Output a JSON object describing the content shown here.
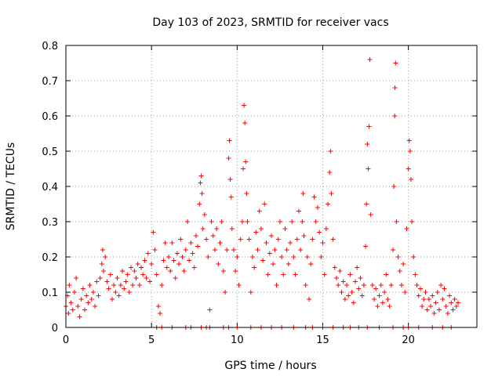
{
  "chart_data": {
    "type": "scatter",
    "title": "Day 103 of 2023, SRMTID for receiver vacs",
    "xlabel": "GPS time / hours",
    "ylabel": "SRMTID / TECUs",
    "xlim": [
      0,
      24
    ],
    "ylim": [
      0,
      0.8
    ],
    "xticks": [
      0,
      5,
      10,
      15,
      20
    ],
    "xtick_labels": [
      "0",
      "5",
      "10",
      "15",
      "20"
    ],
    "yticks": [
      0,
      0.1,
      0.2,
      0.3,
      0.4,
      0.5,
      0.6,
      0.7,
      0.8
    ],
    "ytick_labels": [
      "0",
      "0.1",
      "0.2",
      "0.3",
      "0.4",
      "0.5",
      "0.6",
      "0.7",
      "0.8"
    ],
    "grid": true,
    "marker": "+",
    "color": "#ff0000",
    "series": [
      {
        "name": "SRMTID",
        "points": [
          [
            0.0,
            0.06
          ],
          [
            0.1,
            0.09
          ],
          [
            0.15,
            0.04
          ],
          [
            0.2,
            0.12
          ],
          [
            0.3,
            0.07
          ],
          [
            0.4,
            0.05
          ],
          [
            0.5,
            0.1
          ],
          [
            0.6,
            0.14
          ],
          [
            0.7,
            0.06
          ],
          [
            0.8,
            0.03
          ],
          [
            0.9,
            0.08
          ],
          [
            1.0,
            0.11
          ],
          [
            1.1,
            0.05
          ],
          [
            1.2,
            0.09
          ],
          [
            1.3,
            0.07
          ],
          [
            1.4,
            0.12
          ],
          [
            1.5,
            0.08
          ],
          [
            1.6,
            0.1
          ],
          [
            1.7,
            0.06
          ],
          [
            1.8,
            0.13
          ],
          [
            1.9,
            0.09
          ],
          [
            2.0,
            0.14
          ],
          [
            2.1,
            0.18
          ],
          [
            2.15,
            0.22
          ],
          [
            2.2,
            0.16
          ],
          [
            2.3,
            0.2
          ],
          [
            2.4,
            0.13
          ],
          [
            2.5,
            0.11
          ],
          [
            2.6,
            0.15
          ],
          [
            2.7,
            0.08
          ],
          [
            2.8,
            0.12
          ],
          [
            2.9,
            0.1
          ],
          [
            3.0,
            0.14
          ],
          [
            3.1,
            0.09
          ],
          [
            3.2,
            0.12
          ],
          [
            3.3,
            0.16
          ],
          [
            3.4,
            0.11
          ],
          [
            3.5,
            0.13
          ],
          [
            3.6,
            0.15
          ],
          [
            3.7,
            0.1
          ],
          [
            3.8,
            0.17
          ],
          [
            3.9,
            0.12
          ],
          [
            4.0,
            0.16
          ],
          [
            4.1,
            0.14
          ],
          [
            4.2,
            0.18
          ],
          [
            4.3,
            0.12
          ],
          [
            4.4,
            0.17
          ],
          [
            4.5,
            0.15
          ],
          [
            4.6,
            0.19
          ],
          [
            4.7,
            0.14
          ],
          [
            4.8,
            0.21
          ],
          [
            4.9,
            0.13
          ],
          [
            5.0,
            0.18
          ],
          [
            5.1,
            0.27
          ],
          [
            5.2,
            0.22
          ],
          [
            5.3,
            0.15
          ],
          [
            5.4,
            0.06
          ],
          [
            5.5,
            0.04
          ],
          [
            5.6,
            0.12
          ],
          [
            5.7,
            0.19
          ],
          [
            5.8,
            0.24
          ],
          [
            5.9,
            0.17
          ],
          [
            6.0,
            0.2
          ],
          [
            6.1,
            0.16
          ],
          [
            6.2,
            0.24
          ],
          [
            6.3,
            0.19
          ],
          [
            6.4,
            0.14
          ],
          [
            6.5,
            0.21
          ],
          [
            6.6,
            0.18
          ],
          [
            6.7,
            0.25
          ],
          [
            6.8,
            0.2
          ],
          [
            6.9,
            0.16
          ],
          [
            7.0,
            0.22
          ],
          [
            7.1,
            0.3
          ],
          [
            7.2,
            0.19
          ],
          [
            7.3,
            0.24
          ],
          [
            7.4,
            0.21
          ],
          [
            7.5,
            0.17
          ],
          [
            7.6,
            0.26
          ],
          [
            7.7,
            0.23
          ],
          [
            7.8,
            0.35
          ],
          [
            7.85,
            0.41
          ],
          [
            7.9,
            0.43
          ],
          [
            7.95,
            0.38
          ],
          [
            8.0,
            0.28
          ],
          [
            8.1,
            0.32
          ],
          [
            8.2,
            0.25
          ],
          [
            8.3,
            0.2
          ],
          [
            8.4,
            0.05
          ],
          [
            8.5,
            0.3
          ],
          [
            8.6,
            0.26
          ],
          [
            8.7,
            0.22
          ],
          [
            8.8,
            0.28
          ],
          [
            8.9,
            0.18
          ],
          [
            9.0,
            0.24
          ],
          [
            9.1,
            0.3
          ],
          [
            9.2,
            0.16
          ],
          [
            9.3,
            0.1
          ],
          [
            9.4,
            0.22
          ],
          [
            9.5,
            0.48
          ],
          [
            9.55,
            0.53
          ],
          [
            9.6,
            0.42
          ],
          [
            9.65,
            0.37
          ],
          [
            9.7,
            0.28
          ],
          [
            9.8,
            0.22
          ],
          [
            9.9,
            0.16
          ],
          [
            10.0,
            0.2
          ],
          [
            10.1,
            0.12
          ],
          [
            10.2,
            0.25
          ],
          [
            10.3,
            0.3
          ],
          [
            10.35,
            0.45
          ],
          [
            10.4,
            0.63
          ],
          [
            10.45,
            0.58
          ],
          [
            10.5,
            0.47
          ],
          [
            10.55,
            0.38
          ],
          [
            10.6,
            0.3
          ],
          [
            10.7,
            0.25
          ],
          [
            10.8,
            0.1
          ],
          [
            10.9,
            0.2
          ],
          [
            11.0,
            0.17
          ],
          [
            11.1,
            0.27
          ],
          [
            11.2,
            0.22
          ],
          [
            11.3,
            0.33
          ],
          [
            11.4,
            0.28
          ],
          [
            11.5,
            0.19
          ],
          [
            11.6,
            0.35
          ],
          [
            11.7,
            0.24
          ],
          [
            11.8,
            0.15
          ],
          [
            11.9,
            0.21
          ],
          [
            12.0,
            0.26
          ],
          [
            12.1,
            0.18
          ],
          [
            12.2,
            0.22
          ],
          [
            12.3,
            0.12
          ],
          [
            12.4,
            0.25
          ],
          [
            12.5,
            0.3
          ],
          [
            12.6,
            0.2
          ],
          [
            12.7,
            0.15
          ],
          [
            12.8,
            0.28
          ],
          [
            12.9,
            0.22
          ],
          [
            13.0,
            0.18
          ],
          [
            13.1,
            0.24
          ],
          [
            13.2,
            0.3
          ],
          [
            13.3,
            0.2
          ],
          [
            13.4,
            0.15
          ],
          [
            13.5,
            0.25
          ],
          [
            13.6,
            0.33
          ],
          [
            13.7,
            0.22
          ],
          [
            13.8,
            0.3
          ],
          [
            13.85,
            0.38
          ],
          [
            13.9,
            0.26
          ],
          [
            14.0,
            0.12
          ],
          [
            14.1,
            0.2
          ],
          [
            14.2,
            0.08
          ],
          [
            14.3,
            0.18
          ],
          [
            14.4,
            0.25
          ],
          [
            14.5,
            0.37
          ],
          [
            14.6,
            0.3
          ],
          [
            14.7,
            0.34
          ],
          [
            14.8,
            0.27
          ],
          [
            14.9,
            0.2
          ],
          [
            15.0,
            0.24
          ],
          [
            15.1,
            0.15
          ],
          [
            15.2,
            0.28
          ],
          [
            15.3,
            0.35
          ],
          [
            15.4,
            0.44
          ],
          [
            15.45,
            0.5
          ],
          [
            15.5,
            0.38
          ],
          [
            15.6,
            0.25
          ],
          [
            15.7,
            0.17
          ],
          [
            15.8,
            0.14
          ],
          [
            15.9,
            0.12
          ],
          [
            16.0,
            0.16
          ],
          [
            16.1,
            0.1
          ],
          [
            16.2,
            0.13
          ],
          [
            16.3,
            0.08
          ],
          [
            16.4,
            0.12
          ],
          [
            16.5,
            0.09
          ],
          [
            16.6,
            0.15
          ],
          [
            16.7,
            0.1
          ],
          [
            16.8,
            0.07
          ],
          [
            16.9,
            0.13
          ],
          [
            17.0,
            0.17
          ],
          [
            17.1,
            0.11
          ],
          [
            17.2,
            0.14
          ],
          [
            17.3,
            0.09
          ],
          [
            17.4,
            0.12
          ],
          [
            17.5,
            0.23
          ],
          [
            17.55,
            0.35
          ],
          [
            17.6,
            0.52
          ],
          [
            17.65,
            0.45
          ],
          [
            17.7,
            0.57
          ],
          [
            17.75,
            0.76
          ],
          [
            17.8,
            0.32
          ],
          [
            17.9,
            0.12
          ],
          [
            18.0,
            0.08
          ],
          [
            18.1,
            0.11
          ],
          [
            18.2,
            0.06
          ],
          [
            18.3,
            0.09
          ],
          [
            18.4,
            0.12
          ],
          [
            18.5,
            0.07
          ],
          [
            18.6,
            0.1
          ],
          [
            18.7,
            0.15
          ],
          [
            18.8,
            0.08
          ],
          [
            18.9,
            0.06
          ],
          [
            19.0,
            0.12
          ],
          [
            19.1,
            0.22
          ],
          [
            19.15,
            0.4
          ],
          [
            19.2,
            0.6
          ],
          [
            19.22,
            0.68
          ],
          [
            19.25,
            0.75
          ],
          [
            19.3,
            0.3
          ],
          [
            19.4,
            0.2
          ],
          [
            19.5,
            0.16
          ],
          [
            19.6,
            0.12
          ],
          [
            19.7,
            0.18
          ],
          [
            19.8,
            0.1
          ],
          [
            19.9,
            0.28
          ],
          [
            20.0,
            0.45
          ],
          [
            20.05,
            0.53
          ],
          [
            20.1,
            0.5
          ],
          [
            20.15,
            0.42
          ],
          [
            20.2,
            0.3
          ],
          [
            20.3,
            0.2
          ],
          [
            20.4,
            0.15
          ],
          [
            20.5,
            0.12
          ],
          [
            20.6,
            0.09
          ],
          [
            20.7,
            0.11
          ],
          [
            20.8,
            0.06
          ],
          [
            20.9,
            0.08
          ],
          [
            21.0,
            0.1
          ],
          [
            21.1,
            0.05
          ],
          [
            21.2,
            0.08
          ],
          [
            21.3,
            0.06
          ],
          [
            21.4,
            0.09
          ],
          [
            21.5,
            0.04
          ],
          [
            21.6,
            0.07
          ],
          [
            21.7,
            0.1
          ],
          [
            21.8,
            0.05
          ],
          [
            21.9,
            0.12
          ],
          [
            22.0,
            0.08
          ],
          [
            22.1,
            0.11
          ],
          [
            22.2,
            0.06
          ],
          [
            22.3,
            0.04
          ],
          [
            22.4,
            0.09
          ],
          [
            22.5,
            0.07
          ],
          [
            22.6,
            0.05
          ],
          [
            22.7,
            0.08
          ],
          [
            22.8,
            0.06
          ],
          [
            22.9,
            0.07
          ],
          [
            5.3,
            0.0
          ],
          [
            5.6,
            0.0
          ],
          [
            6.2,
            0.0
          ],
          [
            7.0,
            0.0
          ],
          [
            7.3,
            0.0
          ],
          [
            7.9,
            0.0
          ],
          [
            8.2,
            0.0
          ],
          [
            8.4,
            0.0
          ],
          [
            9.2,
            0.0
          ],
          [
            9.5,
            0.0
          ],
          [
            10.0,
            0.0
          ],
          [
            10.8,
            0.0
          ],
          [
            11.4,
            0.0
          ],
          [
            12.0,
            0.0
          ],
          [
            12.6,
            0.0
          ],
          [
            13.3,
            0.0
          ],
          [
            14.0,
            0.0
          ],
          [
            14.4,
            0.0
          ],
          [
            15.0,
            0.0
          ],
          [
            15.6,
            0.0
          ],
          [
            16.2,
            0.0
          ],
          [
            16.6,
            0.0
          ],
          [
            17.1,
            0.0
          ],
          [
            17.6,
            0.0
          ],
          [
            18.3,
            0.0
          ],
          [
            19.1,
            0.0
          ],
          [
            19.7,
            0.0
          ],
          [
            20.0,
            0.0
          ],
          [
            20.6,
            0.0
          ],
          [
            21.4,
            0.0
          ],
          [
            22.0,
            0.0
          ],
          [
            22.5,
            0.0
          ]
        ]
      }
    ]
  }
}
